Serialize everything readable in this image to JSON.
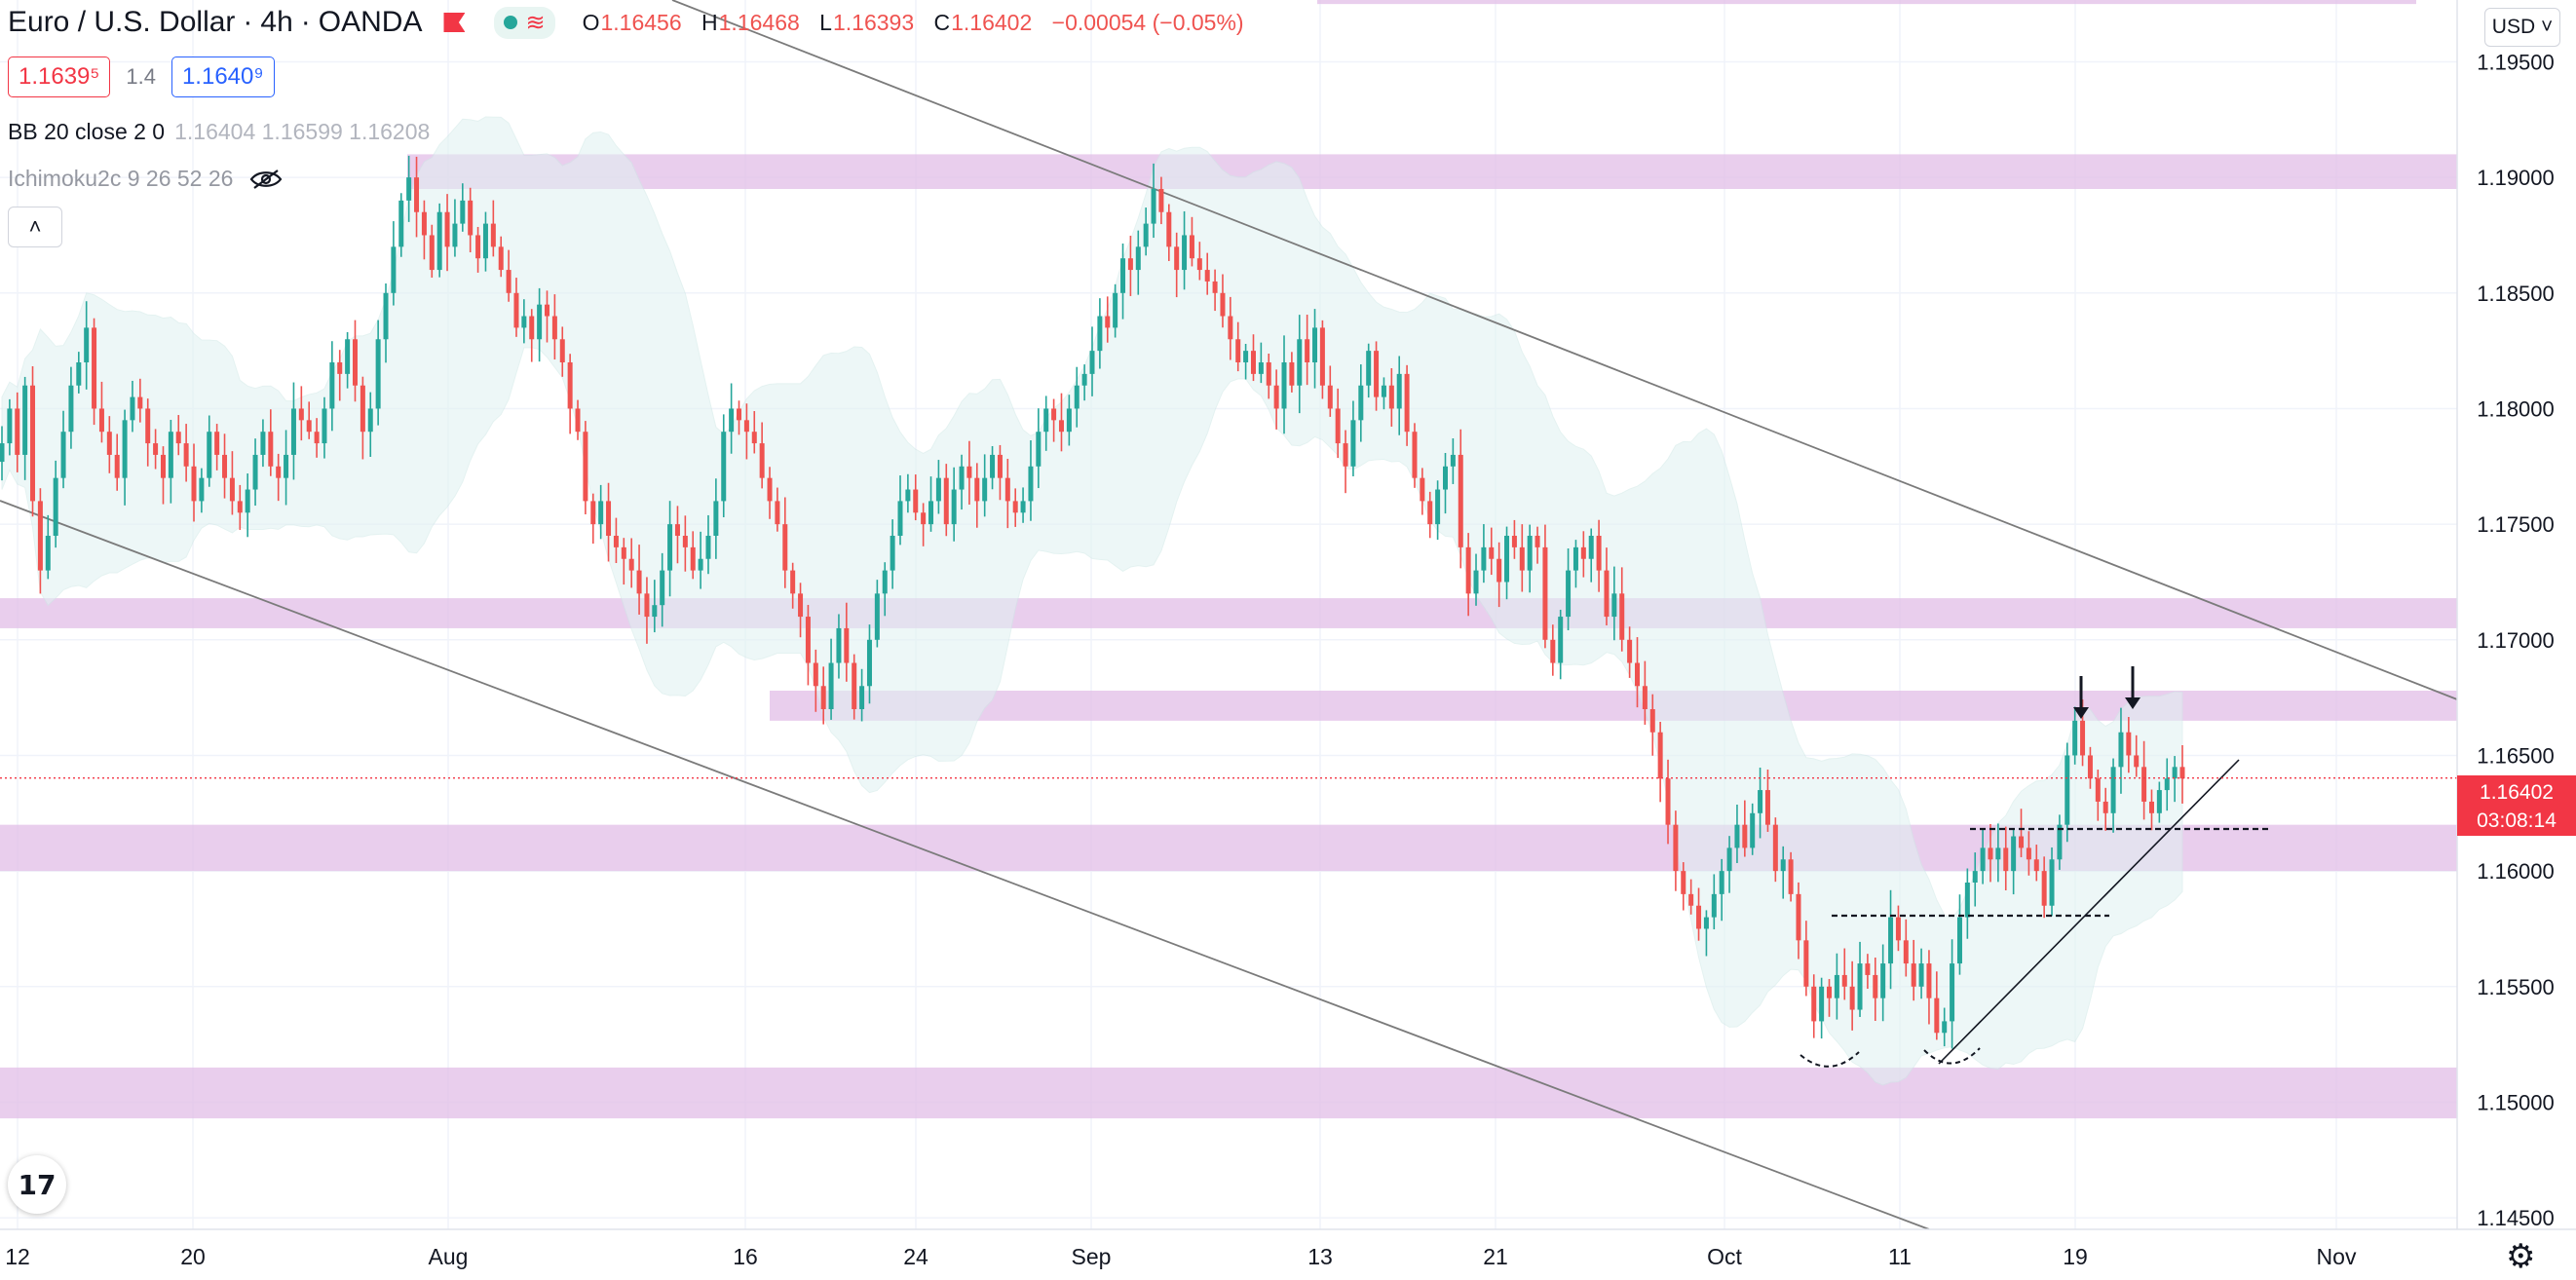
{
  "header": {
    "symbol": "Euro / U.S. Dollar",
    "interval": "4h",
    "exchange": "OANDA",
    "ohlc": {
      "o_label": "O",
      "o": "1.16456",
      "h_label": "H",
      "h": "1.16468",
      "l_label": "L",
      "l": "1.16393",
      "c_label": "C",
      "c": "1.16402",
      "change": "−0.00054 (−0.05%)"
    },
    "bid": "1.1639⁵",
    "spread": "1.4",
    "ask": "1.1640⁹"
  },
  "indicators": {
    "bb": {
      "name": "BB 20 close 2 0",
      "values": "1.16404  1.16599  1.16208"
    },
    "ichimoku": {
      "name": "Ichimoku2c 9 26 52 26"
    }
  },
  "controls": {
    "currency": "USD ˅",
    "collapse": "˄",
    "logo": "17",
    "settings_icon": "⚙"
  },
  "last_price": {
    "value": "1.16402",
    "countdown": "03:08:14"
  },
  "colors": {
    "up": "#26a69a",
    "down": "#ef5350",
    "zone": "#e1bee7",
    "line": "#7b7b7b",
    "band": "#e0f2f1"
  },
  "chart_data": {
    "type": "candlestick",
    "y_ticks": [
      "1.19500",
      "1.19000",
      "1.18500",
      "1.18000",
      "1.17500",
      "1.17000",
      "1.16500",
      "1.16000",
      "1.15500",
      "1.15000",
      "1.14500"
    ],
    "x_ticks": [
      "12",
      "20",
      "Aug",
      "16",
      "24",
      "Sep",
      "13",
      "21",
      "Oct",
      "11",
      "19",
      "Nov"
    ],
    "ylim": [
      1.1445,
      1.197
    ],
    "last_price": 1.16402,
    "zones": [
      {
        "low": 1.1895,
        "high": 1.191,
        "from": "Jul 30",
        "to": "end"
      },
      {
        "low": 1.1705,
        "high": 1.1718,
        "from": "start",
        "to": "end"
      },
      {
        "low": 1.1665,
        "high": 1.1678,
        "from": "Aug 18",
        "to": "end"
      },
      {
        "low": 1.16,
        "high": 1.162,
        "from": "start",
        "to": "end"
      },
      {
        "low": 1.1493,
        "high": 1.1515,
        "from": "start",
        "to": "end"
      },
      {
        "low": 1.1975,
        "high": 1.198,
        "from": "Sep 19",
        "to": "Oct 20"
      }
    ],
    "closes": [
      1.1785,
      1.18,
      1.178,
      1.181,
      1.176,
      1.173,
      1.1745,
      1.177,
      1.179,
      1.181,
      1.182,
      1.1835,
      1.18,
      1.179,
      1.178,
      1.177,
      1.1795,
      1.1805,
      1.18,
      1.1785,
      1.178,
      1.177,
      1.179,
      1.1785,
      1.1775,
      1.176,
      1.177,
      1.179,
      1.178,
      1.177,
      1.176,
      1.1755,
      1.1765,
      1.178,
      1.179,
      1.1775,
      1.177,
      1.178,
      1.18,
      1.1795,
      1.179,
      1.1785,
      1.18,
      1.182,
      1.1815,
      1.183,
      1.181,
      1.179,
      1.18,
      1.183,
      1.185,
      1.187,
      1.189,
      1.19,
      1.1885,
      1.1875,
      1.186,
      1.1885,
      1.187,
      1.188,
      1.189,
      1.1875,
      1.1865,
      1.188,
      1.187,
      1.186,
      1.185,
      1.1835,
      1.184,
      1.183,
      1.1845,
      1.184,
      1.183,
      1.182,
      1.18,
      1.179,
      1.176,
      1.175,
      1.176,
      1.1745,
      1.174,
      1.1735,
      1.173,
      1.172,
      1.171,
      1.1715,
      1.173,
      1.175,
      1.1745,
      1.174,
      1.173,
      1.1735,
      1.1745,
      1.176,
      1.179,
      1.18,
      1.1795,
      1.179,
      1.1785,
      1.177,
      1.176,
      1.175,
      1.173,
      1.172,
      1.171,
      1.169,
      1.168,
      1.167,
      1.169,
      1.1705,
      1.169,
      1.167,
      1.168,
      1.17,
      1.172,
      1.173,
      1.1745,
      1.176,
      1.1765,
      1.1755,
      1.175,
      1.176,
      1.177,
      1.175,
      1.1765,
      1.1775,
      1.177,
      1.176,
      1.177,
      1.178,
      1.177,
      1.176,
      1.1755,
      1.176,
      1.1775,
      1.179,
      1.18,
      1.1795,
      1.179,
      1.18,
      1.181,
      1.1815,
      1.1825,
      1.184,
      1.1835,
      1.185,
      1.1865,
      1.186,
      1.187,
      1.188,
      1.1895,
      1.1885,
      1.187,
      1.186,
      1.1875,
      1.1865,
      1.186,
      1.1855,
      1.185,
      1.184,
      1.183,
      1.182,
      1.1825,
      1.1815,
      1.182,
      1.181,
      1.18,
      1.182,
      1.181,
      1.183,
      1.182,
      1.1835,
      1.181,
      1.18,
      1.1785,
      1.1775,
      1.1795,
      1.181,
      1.1825,
      1.1805,
      1.181,
      1.18,
      1.1815,
      1.179,
      1.177,
      1.176,
      1.175,
      1.1765,
      1.1775,
      1.178,
      1.174,
      1.172,
      1.173,
      1.174,
      1.1735,
      1.1725,
      1.1745,
      1.174,
      1.173,
      1.1745,
      1.174,
      1.17,
      1.169,
      1.171,
      1.173,
      1.174,
      1.1735,
      1.1745,
      1.173,
      1.171,
      1.172,
      1.17,
      1.169,
      1.168,
      1.167,
      1.166,
      1.164,
      1.162,
      1.16,
      1.159,
      1.1585,
      1.1575,
      1.158,
      1.159,
      1.16,
      1.161,
      1.162,
      1.161,
      1.1625,
      1.1635,
      1.162,
      1.16,
      1.1605,
      1.159,
      1.157,
      1.155,
      1.1535,
      1.155,
      1.1545,
      1.1555,
      1.155,
      1.154,
      1.156,
      1.1555,
      1.1545,
      1.156,
      1.158,
      1.157,
      1.156,
      1.155,
      1.156,
      1.1545,
      1.153,
      1.1535,
      1.156,
      1.158,
      1.1595,
      1.16,
      1.161,
      1.1605,
      1.161,
      1.16,
      1.1615,
      1.161,
      1.1605,
      1.16,
      1.1585,
      1.1605,
      1.162,
      1.165,
      1.1665,
      1.165,
      1.164,
      1.163,
      1.1625,
      1.1645,
      1.166,
      1.165,
      1.1645,
      1.163,
      1.1625,
      1.1635,
      1.164,
      1.1645,
      1.164
    ],
    "annotations": [
      "descending-channel",
      "support-trendline",
      "two-down-arrows",
      "two-dashed-necklines",
      "two-curved-bottoms"
    ]
  }
}
